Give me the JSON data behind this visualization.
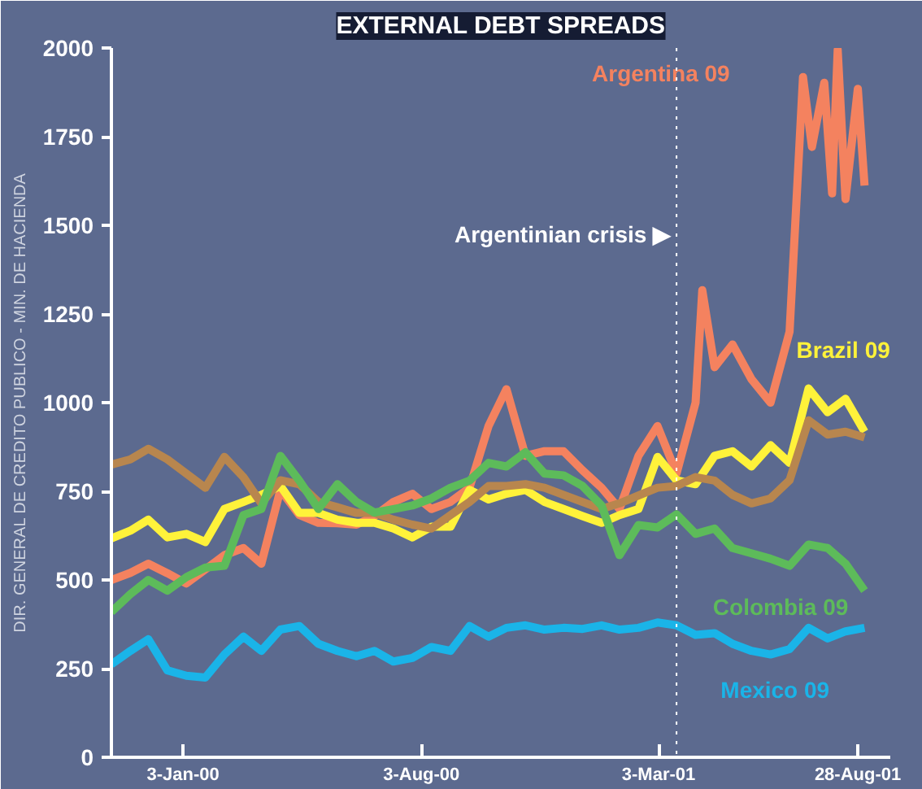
{
  "chart_data": {
    "type": "line",
    "title": "EXTERNAL DEBT SPREADS",
    "x": [
      "1999-10-31",
      "1999-11-17",
      "1999-12-03",
      "1999-12-20",
      "2000-01-06",
      "2000-01-23",
      "2000-02-09",
      "2000-02-26",
      "2000-03-13",
      "2000-03-30",
      "2000-04-16",
      "2000-05-03",
      "2000-05-20",
      "2000-06-06",
      "2000-06-22",
      "2000-07-09",
      "2000-07-26",
      "2000-08-12",
      "2000-08-29",
      "2000-09-15",
      "2000-10-02",
      "2000-10-18",
      "2000-11-04",
      "2000-11-21",
      "2000-12-08",
      "2000-12-25",
      "2001-01-11",
      "2001-01-27",
      "2001-02-13",
      "2001-03-02",
      "2001-03-19",
      "2001-04-05",
      "2001-04-22",
      "2001-05-08",
      "2001-05-25",
      "2001-06-11",
      "2001-06-28",
      "2001-07-15",
      "2001-08-01",
      "2001-08-17",
      "2001-09-03"
    ],
    "series": [
      {
        "name": "Argentina 09",
        "color": "#f4825f",
        "x": [
          "1999-10-31",
          "1999-11-17",
          "1999-12-03",
          "1999-12-20",
          "2000-01-06",
          "2000-01-23",
          "2000-02-09",
          "2000-02-26",
          "2000-03-13",
          "2000-03-30",
          "2000-04-16",
          "2000-05-03",
          "2000-05-20",
          "2000-06-06",
          "2000-06-22",
          "2000-07-09",
          "2000-07-26",
          "2000-08-12",
          "2000-08-29",
          "2000-09-15",
          "2000-10-02",
          "2000-10-18",
          "2000-11-04",
          "2000-11-21",
          "2000-12-08",
          "2000-12-25",
          "2001-01-11",
          "2001-01-27",
          "2001-02-13",
          "2001-03-02",
          "2001-03-19",
          "2001-04-05",
          "2001-04-11",
          "2001-04-22",
          "2001-05-08",
          "2001-05-25",
          "2001-06-11",
          "2001-06-28",
          "2001-07-10",
          "2001-07-18",
          "2001-07-29",
          "2001-08-05",
          "2001-08-10",
          "2001-08-17",
          "2001-08-28",
          "2001-09-03"
        ],
        "values": [
          500,
          520,
          546,
          519,
          490,
          530,
          570,
          590,
          546,
          754,
          683,
          661,
          660,
          656,
          680,
          720,
          743,
          700,
          720,
          760,
          934,
          1038,
          850,
          863,
          863,
          809,
          760,
          700,
          850,
          934,
          800,
          1000,
          1317,
          1100,
          1164,
          1066,
          1000,
          1200,
          1918,
          1721,
          1902,
          1590,
          1995,
          1574,
          1885,
          1612
        ]
      },
      {
        "name": "Brazil 09",
        "color": "#fff23a",
        "values": [
          617,
          639,
          670,
          620,
          630,
          607,
          700,
          720,
          740,
          765,
          689,
          689,
          670,
          661,
          661,
          645,
          620,
          650,
          650,
          754,
          727,
          743,
          754,
          720,
          700,
          680,
          661,
          683,
          700,
          847,
          781,
          770,
          850,
          863,
          820,
          880,
          830,
          1040,
          973,
          1011,
          918
        ]
      },
      {
        "color": "#b8864e",
        "values": [
          825,
          840,
          870,
          840,
          800,
          760,
          847,
          790,
          716,
          781,
          770,
          720,
          705,
          689,
          689,
          670,
          656,
          645,
          683,
          720,
          765,
          765,
          770,
          760,
          740,
          720,
          700,
          716,
          738,
          760,
          765,
          790,
          780,
          740,
          716,
          730,
          781,
          950,
          910,
          918,
          902
        ]
      },
      {
        "name": "Colombia 09",
        "color": "#5dbb5a",
        "values": [
          410,
          460,
          500,
          470,
          508,
          535,
          540,
          683,
          700,
          850,
          780,
          700,
          770,
          720,
          690,
          700,
          710,
          730,
          760,
          780,
          830,
          820,
          860,
          800,
          795,
          765,
          710,
          570,
          655,
          648,
          685,
          630,
          645,
          590,
          575,
          560,
          540,
          600,
          590,
          546,
          470
        ]
      },
      {
        "name": "Mexico 09",
        "color": "#1ab4e8",
        "values": [
          262,
          300,
          333,
          245,
          230,
          225,
          290,
          340,
          300,
          360,
          370,
          320,
          300,
          285,
          300,
          270,
          280,
          311,
          300,
          370,
          340,
          365,
          372,
          360,
          365,
          362,
          372,
          360,
          365,
          380,
          372,
          345,
          350,
          320,
          300,
          290,
          305,
          365,
          335,
          355,
          365
        ]
      }
    ],
    "xlim": [
      "1999-10-31",
      "2001-09-26"
    ],
    "xticks": [
      {
        "value": "2000-01-03",
        "label": "3-Jan-00"
      },
      {
        "value": "2000-08-03",
        "label": "3-Aug-00"
      },
      {
        "value": "2001-03-03",
        "label": "3-Mar-01"
      },
      {
        "value": "2001-08-28",
        "label": "28-Aug-01"
      }
    ],
    "ylim": [
      0,
      2000
    ],
    "yticks": [
      0,
      250,
      500,
      750,
      1000,
      1250,
      1500,
      1750,
      2000
    ],
    "ref_lines": [
      {
        "axis": "x",
        "value": "2001-03-19",
        "label": "Argentinian crisis ▶",
        "color": "#ffffff",
        "line_style": "dotted"
      }
    ],
    "annotations": [
      "DIR. GENERAL DE CREDITO PUBLICO - MIN. DE HACIENDA"
    ],
    "grid": false,
    "marker": "none",
    "line_style": "solid"
  }
}
